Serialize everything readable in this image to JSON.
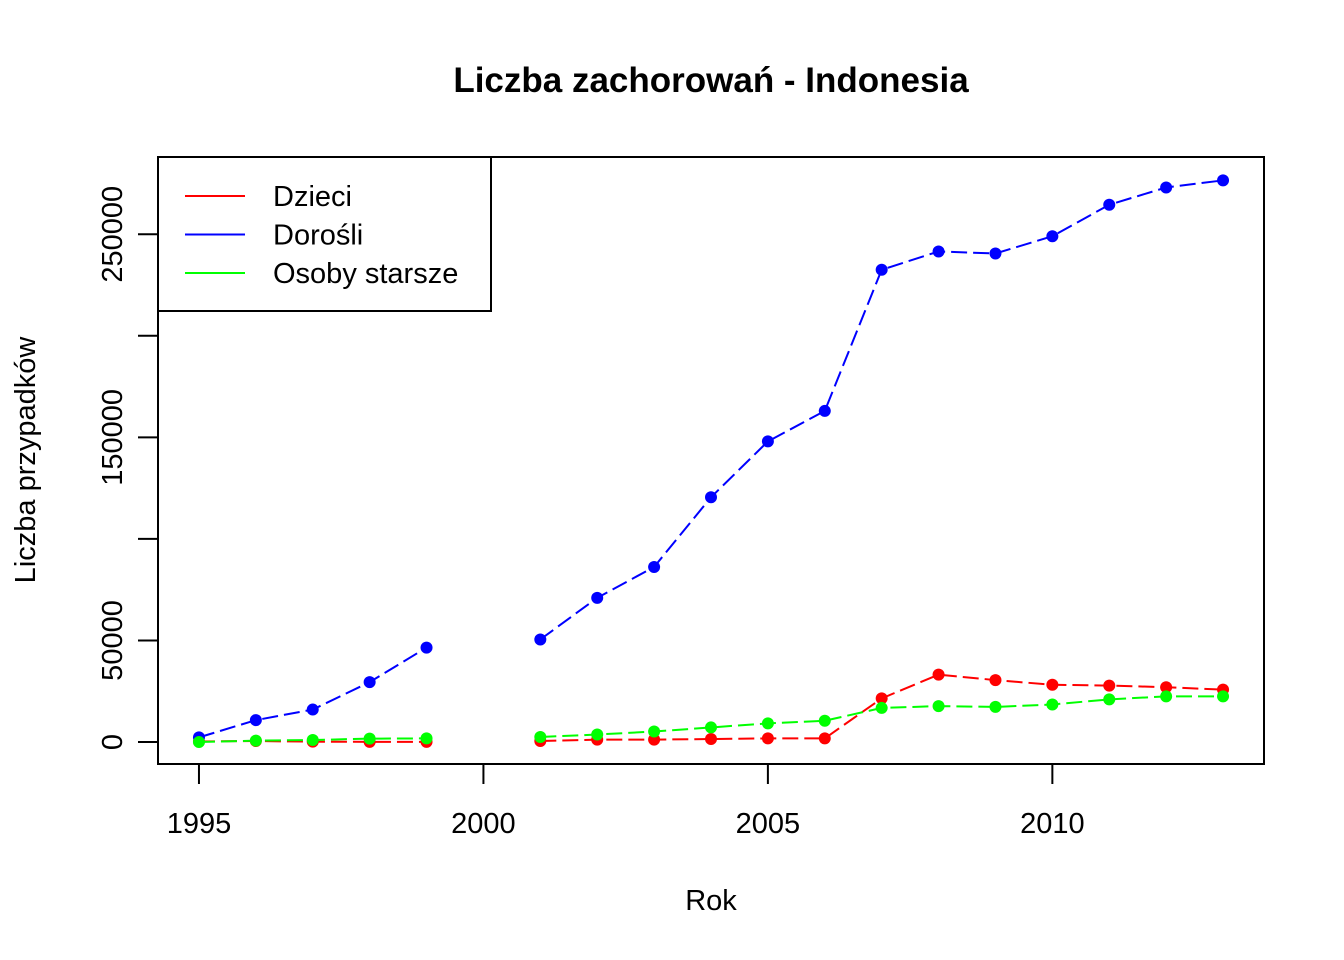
{
  "chart_data": {
    "type": "line",
    "title": "Liczba zachorowań -  Indonesia",
    "xlabel": "Rok",
    "ylabel": "Liczba przypadków",
    "xlim": [
      1994.28,
      2013.72
    ],
    "ylim": [
      -10800,
      288000
    ],
    "x_ticks": [
      1995,
      2000,
      2005,
      2010
    ],
    "y_ticks": [
      0,
      50000,
      100000,
      150000,
      200000,
      250000
    ],
    "y_tick_labels": [
      "0",
      "50000",
      "",
      "150000",
      "",
      "250000"
    ],
    "grid": false,
    "legend_position": "top-left",
    "x": [
      1995,
      1996,
      1997,
      1998,
      1999,
      2000,
      2001,
      2002,
      2003,
      2004,
      2005,
      2006,
      2007,
      2008,
      2009,
      2010,
      2011,
      2012,
      2013
    ],
    "series": [
      {
        "name": "Dzieci",
        "color": "#ff0000",
        "values": [
          300,
          500,
          200,
          100,
          100,
          null,
          500,
          1200,
          1200,
          1500,
          1800,
          1800,
          21500,
          33200,
          30500,
          28200,
          27800,
          27000,
          25800
        ]
      },
      {
        "name": "Dorośli",
        "color": "#0000ff",
        "values": [
          2300,
          10800,
          16000,
          29500,
          46500,
          null,
          50500,
          71000,
          86200,
          120500,
          148000,
          163000,
          232500,
          241500,
          240500,
          249000,
          264500,
          273000,
          276500
        ]
      },
      {
        "name": "Osoby starsze",
        "color": "#00ff00",
        "values": [
          0,
          700,
          1000,
          1700,
          1800,
          null,
          2500,
          3700,
          5200,
          7200,
          9200,
          10500,
          16800,
          17700,
          17300,
          18500,
          21000,
          22500,
          22500
        ]
      }
    ]
  }
}
